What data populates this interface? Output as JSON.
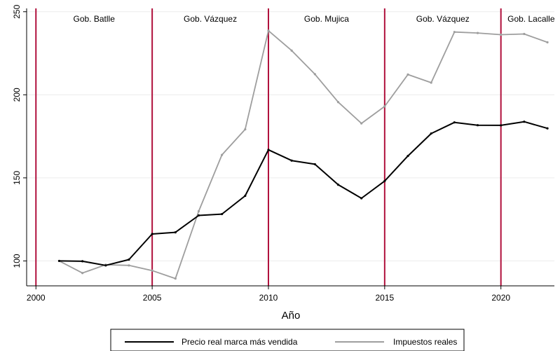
{
  "chart_data": {
    "type": "line",
    "title": "",
    "xlabel": "Año",
    "ylabel": "",
    "xlim": [
      1999.6,
      2022.3
    ],
    "ylim": [
      85,
      252
    ],
    "x_ticks": [
      2000,
      2005,
      2010,
      2015,
      2020
    ],
    "y_ticks": [
      100,
      150,
      200,
      250
    ],
    "grid": true,
    "legend_position": "bottom",
    "x": [
      2001,
      2002,
      2003,
      2004,
      2005,
      2006,
      2007,
      2008,
      2009,
      2010,
      2011,
      2012,
      2013,
      2014,
      2015,
      2016,
      2017,
      2018,
      2019,
      2020,
      2021,
      2022
    ],
    "series": [
      {
        "name": "Precio real marca más vendida",
        "color": "#000000",
        "values": [
          100,
          99.8,
          97.3,
          100.8,
          116.2,
          117.2,
          127.4,
          128.2,
          139.2,
          166.9,
          160.4,
          158.2,
          145.9,
          137.7,
          148.1,
          163.2,
          176.7,
          183.4,
          181.7,
          181.6,
          183.8,
          179.8
        ]
      },
      {
        "name": "Impuestos reales",
        "color": "#9e9e9e",
        "values": [
          100,
          92.7,
          97.7,
          97.3,
          94.2,
          89.4,
          129.9,
          163.8,
          179.2,
          238.6,
          226.6,
          212.4,
          195.6,
          182.8,
          193.0,
          212.2,
          207.3,
          237.8,
          237.2,
          236.2,
          236.6,
          231.6
        ]
      }
    ],
    "vertical_lines": {
      "x": [
        2000,
        2005,
        2010,
        2015,
        2020
      ],
      "color": "#b0103c"
    },
    "period_labels": [
      {
        "text": "Gob. Batlle",
        "x": 2002.5
      },
      {
        "text": "Gob. Vázquez",
        "x": 2007.5
      },
      {
        "text": "Gob. Mujica",
        "x": 2012.5
      },
      {
        "text": "Gob. Vázquez",
        "x": 2017.5
      },
      {
        "text": "Gob. Lacalle",
        "x": 2021.3
      }
    ]
  }
}
